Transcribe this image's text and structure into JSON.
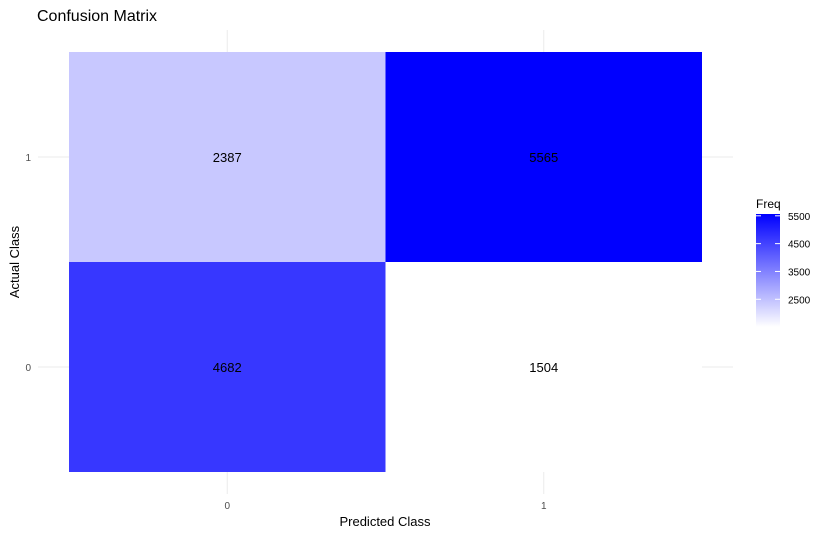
{
  "chart_data": {
    "type": "heatmap",
    "title": "Confusion Matrix",
    "xlabel": "Predicted Class",
    "ylabel": "Actual Class",
    "x_categories": [
      "0",
      "1"
    ],
    "y_categories": [
      "0",
      "1"
    ],
    "cells": [
      {
        "x": "0",
        "y": "1",
        "value": 2387
      },
      {
        "x": "1",
        "y": "1",
        "value": 5565
      },
      {
        "x": "0",
        "y": "0",
        "value": 4682
      },
      {
        "x": "1",
        "y": "0",
        "value": 1504
      }
    ],
    "legend": {
      "title": "Freq",
      "ticks": [
        2500,
        3500,
        4500,
        5500
      ],
      "low_color": "#ffffff",
      "high_color": "#0000ff",
      "placement": "right"
    },
    "grid": true
  }
}
